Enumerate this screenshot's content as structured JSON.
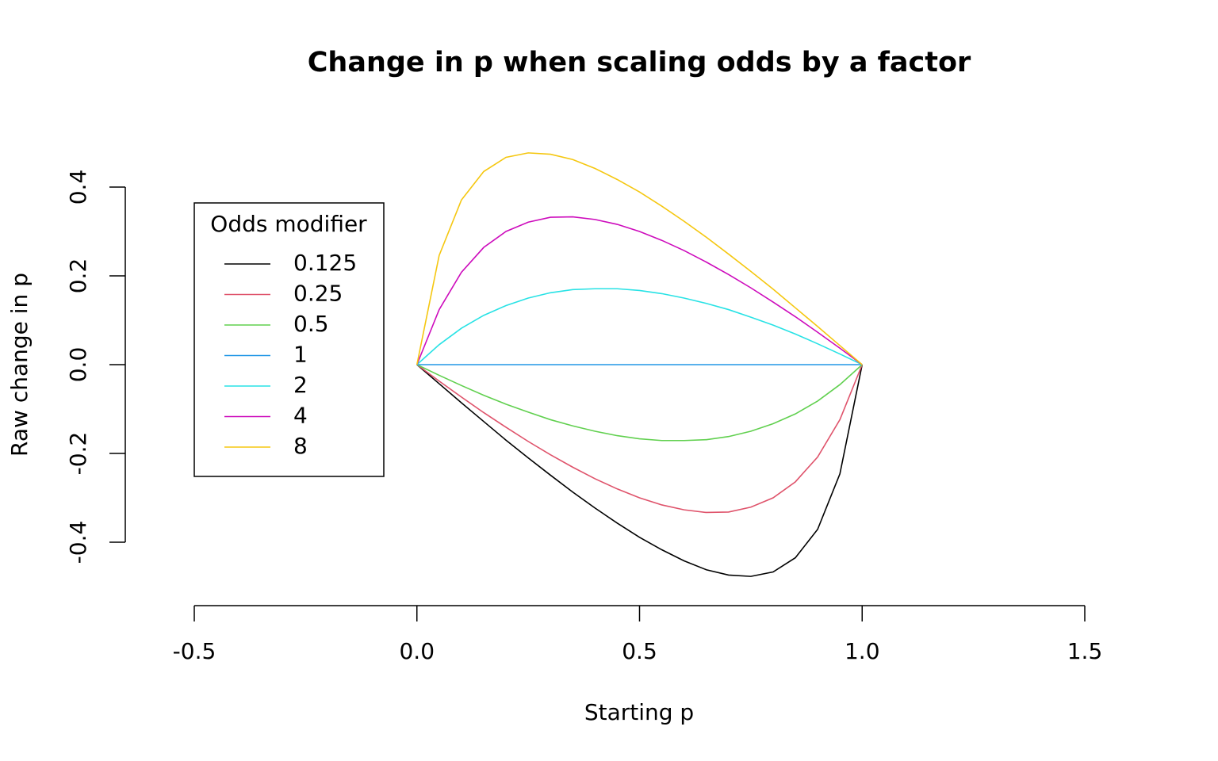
{
  "chart_data": {
    "type": "line",
    "title": "Change in p when scaling odds by a factor",
    "x_label": "Starting p",
    "y_label": "Raw change in p",
    "legend_title": "Odds modifier",
    "legend_position": "topleft",
    "x": [
      0,
      0.05,
      0.1,
      0.15,
      0.2,
      0.25,
      0.3,
      0.35,
      0.4,
      0.45,
      0.5,
      0.55,
      0.6,
      0.65,
      0.7,
      0.75,
      0.8,
      0.85,
      0.9,
      0.95,
      1
    ],
    "series": [
      {
        "name": "0.125",
        "color": "#000000",
        "values": [
          0,
          -0.043,
          -0.086,
          -0.128,
          -0.17,
          -0.21,
          -0.249,
          -0.287,
          -0.323,
          -0.357,
          -0.389,
          -0.417,
          -0.442,
          -0.462,
          -0.474,
          -0.477,
          -0.467,
          -0.435,
          -0.371,
          -0.246,
          0
        ]
      },
      {
        "name": "0.25",
        "color": "#DF536B",
        "values": [
          0,
          -0.037,
          -0.073,
          -0.108,
          -0.141,
          -0.173,
          -0.203,
          -0.231,
          -0.257,
          -0.28,
          -0.3,
          -0.316,
          -0.327,
          -0.333,
          -0.332,
          -0.321,
          -0.3,
          -0.264,
          -0.208,
          -0.124,
          0
        ]
      },
      {
        "name": "0.5",
        "color": "#61D04F",
        "values": [
          0,
          -0.024,
          -0.047,
          -0.069,
          -0.089,
          -0.107,
          -0.124,
          -0.138,
          -0.15,
          -0.16,
          -0.167,
          -0.171,
          -0.171,
          -0.169,
          -0.162,
          -0.15,
          -0.133,
          -0.111,
          -0.082,
          -0.045,
          0
        ]
      },
      {
        "name": "1",
        "color": "#2297E6",
        "values": [
          0,
          0,
          0,
          0,
          0,
          0,
          0,
          0,
          0,
          0,
          0,
          0,
          0,
          0,
          0,
          0,
          0,
          0,
          0,
          0,
          0
        ]
      },
      {
        "name": "2",
        "color": "#28E2E5",
        "values": [
          0,
          0.045,
          0.082,
          0.111,
          0.133,
          0.15,
          0.162,
          0.169,
          0.171,
          0.171,
          0.167,
          0.16,
          0.15,
          0.138,
          0.124,
          0.107,
          0.089,
          0.069,
          0.047,
          0.024,
          0
        ]
      },
      {
        "name": "4",
        "color": "#CD0BBC",
        "values": [
          0,
          0.124,
          0.208,
          0.264,
          0.3,
          0.321,
          0.332,
          0.333,
          0.327,
          0.316,
          0.3,
          0.28,
          0.257,
          0.231,
          0.203,
          0.173,
          0.141,
          0.108,
          0.073,
          0.037,
          0
        ]
      },
      {
        "name": "8",
        "color": "#F5C710",
        "values": [
          0,
          0.246,
          0.371,
          0.435,
          0.467,
          0.477,
          0.474,
          0.462,
          0.442,
          0.417,
          0.389,
          0.357,
          0.323,
          0.287,
          0.249,
          0.21,
          0.17,
          0.128,
          0.086,
          0.043,
          0
        ]
      }
    ],
    "xlim": [
      -0.5,
      1.5
    ],
    "xticks": [
      -0.5,
      {
        "value": 0,
        "label": "0.0"
      },
      0.5,
      {
        "value": 1,
        "label": "1.0"
      },
      1.5
    ],
    "ylim": [
      -0.5,
      0.5
    ],
    "yticks": [
      -0.4,
      -0.2,
      {
        "value": 0,
        "label": "0.0"
      },
      0.2,
      0.4
    ]
  }
}
